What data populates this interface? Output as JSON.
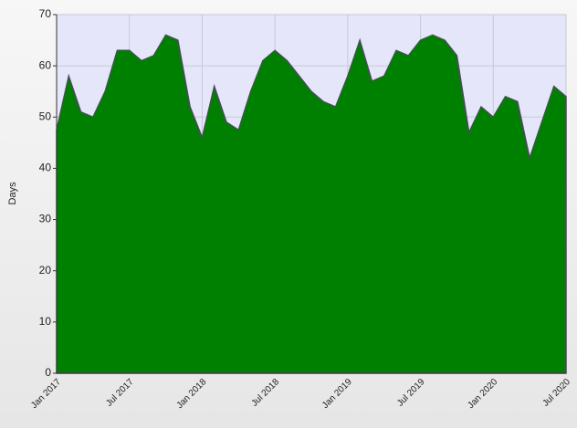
{
  "chart_data": {
    "type": "area",
    "y_label": "Days",
    "categories": [
      "Jan 2017",
      null,
      null,
      null,
      null,
      null,
      "Jul 2017",
      null,
      null,
      null,
      null,
      null,
      "Jan 2018",
      null,
      null,
      null,
      null,
      null,
      "Jul 2018",
      null,
      null,
      null,
      null,
      null,
      "Jan 2019",
      null,
      null,
      null,
      null,
      null,
      "Jul 2019",
      null,
      null,
      null,
      null,
      null,
      "Jan 2020",
      null,
      null,
      null,
      null,
      null,
      "Jul 2020"
    ],
    "values": [
      47.5,
      58,
      51,
      50,
      55,
      63,
      63,
      61,
      62,
      66,
      65,
      52,
      46,
      56,
      49,
      47.5,
      55,
      61,
      63,
      61,
      58,
      55,
      53,
      52,
      58,
      65,
      57,
      58,
      63,
      62,
      65,
      66,
      65,
      62,
      47,
      52,
      50,
      54,
      53,
      42,
      49,
      56,
      54
    ],
    "color": "#008000",
    "ylim": [
      0,
      70
    ],
    "yticks": [
      0,
      10,
      20,
      30,
      40,
      50,
      60,
      70
    ],
    "grid": true
  }
}
